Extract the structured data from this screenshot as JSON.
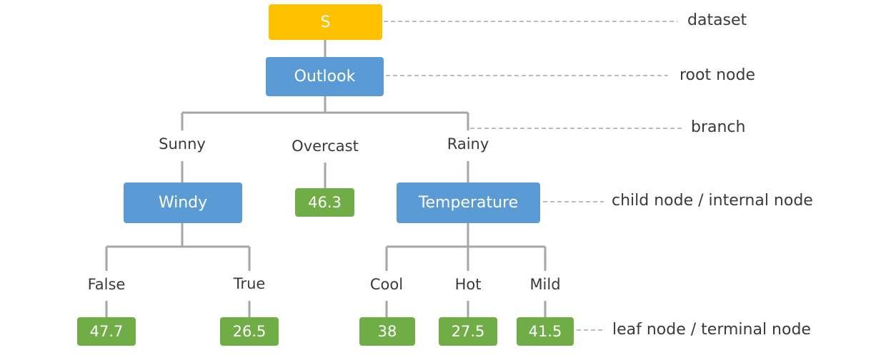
{
  "nodes": {
    "dataset": "S",
    "root": "Outlook",
    "windy": "Windy",
    "temperature": "Temperature",
    "leaf_overcast": "46.3",
    "leaf_false": "47.7",
    "leaf_true": "26.5",
    "leaf_cool": "38",
    "leaf_hot": "27.5",
    "leaf_mild": "41.5"
  },
  "branches": {
    "sunny": "Sunny",
    "overcast": "Overcast",
    "rainy": "Rainy",
    "false": "False",
    "true": "True",
    "cool": "Cool",
    "hot": "Hot",
    "mild": "Mild"
  },
  "annotations": {
    "dataset": "dataset",
    "root": "root node",
    "branch": "branch",
    "child": "child node / internal node",
    "leaf": "leaf node / terminal node"
  },
  "colors": {
    "dataset": "#ffc000",
    "internal": "#5b9bd5",
    "leaf": "#70ad47",
    "connector": "#a6a6a6",
    "annotation_line": "#a6a6a6"
  }
}
